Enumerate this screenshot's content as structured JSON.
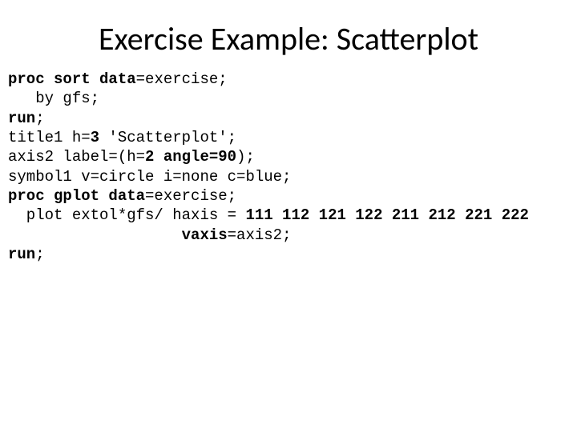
{
  "title": "Exercise Example: Scatterplot",
  "code": {
    "l1": {
      "t1": "proc sort data",
      "t2": "=exercise;"
    },
    "l2": {
      "t1": "   by gfs;"
    },
    "l3": {
      "t1": "run",
      "t2": ";"
    },
    "l4": {
      "t1": "title1 h=",
      "t2": "3",
      "t3": " 'Scatterplot';"
    },
    "l5": {
      "t1": "axis2 label=(h=",
      "t2": "2",
      "t3": " ",
      "t4": "angle=90",
      "t5": ");"
    },
    "l6": {
      "t1": "symbol1 v=circle i=none c=blue;"
    },
    "l7": {
      "t1": "proc gplot data",
      "t2": "=exercise;"
    },
    "l8": {
      "t1": "  plot extol*gfs/ haxis = ",
      "t2": "111 112 121 122 211 212 221 222"
    },
    "l9": {
      "t1": "                   ",
      "t2": "vaxis",
      "t3": "=axis2;"
    },
    "l10": {
      "t1": "run",
      "t2": ";"
    }
  },
  "style": {
    "title_fontsize": 40,
    "code_fontsize": 19,
    "code_font": "Courier New",
    "bold_color": "#000000",
    "text_color": "#000000",
    "background": "#ffffff"
  }
}
